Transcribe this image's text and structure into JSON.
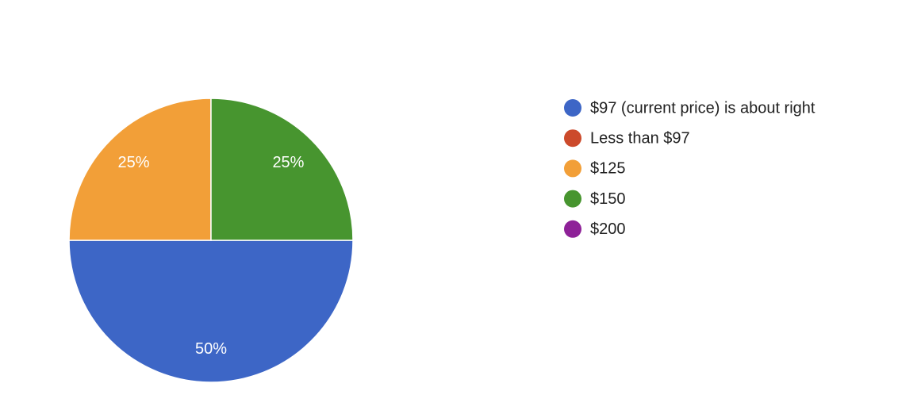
{
  "chart_data": {
    "type": "pie",
    "categories": [
      "$97 (current price) is about right",
      "Less than $97",
      "$125",
      "$150",
      "$200"
    ],
    "values": [
      50,
      0,
      25,
      25,
      0
    ],
    "value_labels": [
      "50%",
      null,
      "25%",
      "25%",
      null
    ],
    "colors": [
      "#3d66c6",
      "#cc4a2b",
      "#f29f38",
      "#47952f",
      "#8e2198"
    ],
    "start_angle": 90,
    "direction": "clockwise",
    "legend": "right"
  }
}
